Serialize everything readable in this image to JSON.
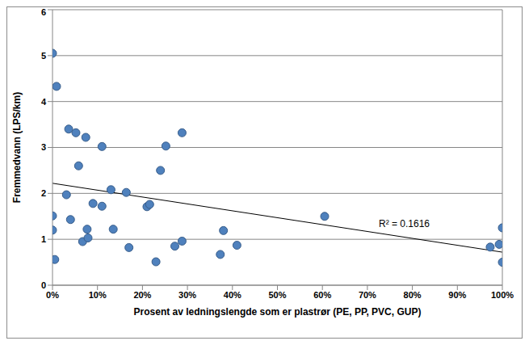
{
  "chart_data": {
    "type": "scatter",
    "x_label": "Prosent av ledningslengde som er plastrør (PE, PP, PVC, GUP)",
    "y_label": "Fremmedvann (LPS/km)",
    "x": [
      0,
      0.9,
      0,
      0,
      0.5,
      3.6,
      5.2,
      7.4,
      5.8,
      11,
      3.1,
      4.0,
      9.0,
      11,
      13,
      16.4,
      13.5,
      6.7,
      7.7,
      7.9,
      17,
      21,
      21.6,
      23,
      24,
      25.2,
      28.8,
      28.8,
      27.2,
      37.3,
      38,
      41,
      60.5,
      97.3,
      99.3,
      100,
      100
    ],
    "values": [
      5.05,
      4.33,
      1.51,
      1.2,
      0.56,
      3.4,
      3.32,
      3.22,
      2.6,
      3.02,
      1.97,
      1.43,
      1.78,
      1.72,
      2.08,
      2.02,
      1.22,
      0.95,
      1.22,
      1.03,
      0.82,
      1.71,
      1.76,
      0.51,
      2.5,
      3.03,
      3.32,
      0.96,
      0.85,
      0.67,
      1.19,
      0.87,
      1.5,
      0.83,
      0.89,
      1.25,
      0.5
    ],
    "color": "#4f81bd",
    "marker": "circle",
    "trendline": {
      "x": [
        0,
        100
      ],
      "values": [
        2.22,
        0.72
      ],
      "color": "#000000"
    },
    "annotation": "R² = 0.1616",
    "xlim": [
      0,
      100
    ],
    "xticks": [
      {
        "value": 0,
        "label": "0%"
      },
      {
        "value": 10,
        "label": "10%"
      },
      {
        "value": 20,
        "label": "20%"
      },
      {
        "value": 30,
        "label": "30%"
      },
      {
        "value": 40,
        "label": "40%"
      },
      {
        "value": 50,
        "label": "50%"
      },
      {
        "value": 60,
        "label": "60%"
      },
      {
        "value": 70,
        "label": "70%"
      },
      {
        "value": 80,
        "label": "80%"
      },
      {
        "value": 90,
        "label": "90%"
      },
      {
        "value": 100,
        "label": "100%"
      }
    ],
    "ylim": [
      0,
      6
    ],
    "yticks": [
      0,
      1,
      2,
      3,
      4,
      5,
      6
    ],
    "grid": true
  }
}
